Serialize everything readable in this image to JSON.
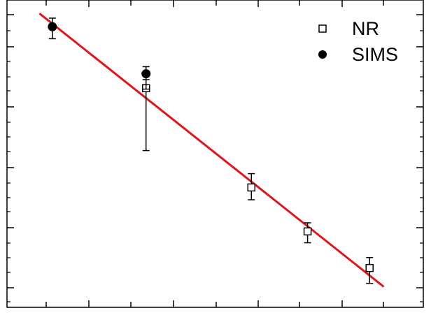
{
  "chart_data": {
    "type": "scatter",
    "title": "",
    "xlabel": "",
    "ylabel": "",
    "xlim": [
      0,
      10
    ],
    "ylim": [
      0,
      10
    ],
    "yscale": "log",
    "grid": false,
    "legend": {
      "position": "top-right"
    },
    "series": [
      {
        "name": "NR",
        "marker": "open-square",
        "color": "#000000",
        "points": [
          {
            "x": 3.34,
            "y": 7.13,
            "err_low": 2.03,
            "err_high": 0.28
          },
          {
            "x": 5.87,
            "y": 3.9,
            "err_low": 0.4,
            "err_high": 0.45
          },
          {
            "x": 7.22,
            "y": 2.47,
            "err_low": 0.37,
            "err_high": 0.28
          },
          {
            "x": 8.71,
            "y": 1.28,
            "err_low": 0.5,
            "err_high": 0.34
          }
        ]
      },
      {
        "name": "SIMS",
        "marker": "filled-circle",
        "color": "#000000",
        "points": [
          {
            "x": 1.09,
            "y": 9.13,
            "err_low": 0.39,
            "err_high": 0.28
          },
          {
            "x": 3.34,
            "y": 7.6,
            "err_low": 0.5,
            "err_high": 0.23
          }
        ]
      },
      {
        "name": "",
        "type": "line",
        "color": "#e0141a",
        "points": [
          {
            "x": 0.78,
            "y": 9.56
          },
          {
            "x": 9.05,
            "y": 0.67
          }
        ]
      }
    ]
  }
}
